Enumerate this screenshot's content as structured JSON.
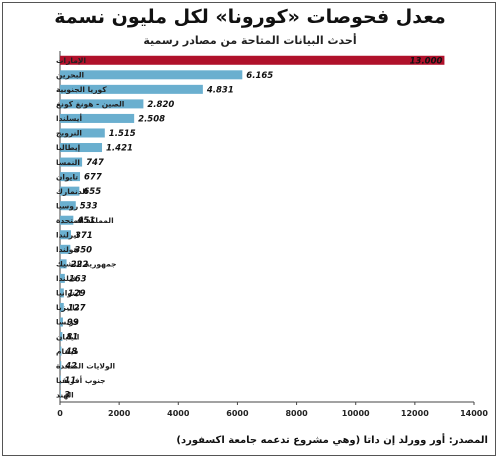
{
  "header": {
    "title": "معدل فحوصات «كورونا» لكل مليون نسمة",
    "subtitle": "أحدث البيانات المتاحة من مصادر رسمية"
  },
  "footer": {
    "source": "المصدر: أور وورلد إن داتا (وهي مشروع تدعمه جامعة اكسفورد)"
  },
  "chart_data": {
    "type": "bar",
    "orientation": "horizontal",
    "categories": [
      "الإمارات",
      "البحرين",
      "كوريا الجنوبية",
      "الصين - هونغ كونغ",
      "أيسلندا",
      "النرويج",
      "إيطاليا",
      "النمسا",
      "تايوان",
      "الدنمارك",
      "روسيا",
      "المملكة المتحدة",
      "ايرلندا",
      "هولندا",
      "جمهورية التشيك",
      "فنلندا",
      "ليتوانيا",
      "ماليزيا",
      "فرنسا",
      "اليابان",
      "فيتنام",
      "الولايات المتحدة",
      "جنوب أفريقيا",
      "الهند"
    ],
    "values": [
      13000,
      6165,
      4831,
      2820,
      2508,
      1515,
      1421,
      747,
      677,
      655,
      533,
      451,
      371,
      350,
      222,
      163,
      129,
      127,
      99,
      81,
      48,
      42,
      11,
      3
    ],
    "value_labels": [
      "13.000",
      "6.165",
      "4.831",
      "2.820",
      "2.508",
      "1.515",
      "1.421",
      "747",
      "677",
      "655",
      "533",
      "451",
      "371",
      "350",
      "222",
      "163",
      "129",
      "127",
      "99",
      "81",
      "48",
      "42",
      "11",
      "3"
    ],
    "xlim": [
      0,
      14000
    ],
    "x_ticks": [
      0,
      2000,
      4000,
      6000,
      8000,
      10000,
      12000,
      14000
    ],
    "x_tick_labels": [
      "0",
      "2000",
      "4000",
      "6000",
      "8000",
      "10000",
      "12000",
      "14000"
    ],
    "highlight_color": "#b0112b",
    "bar_color": "#6aafcf",
    "grid": false
  }
}
